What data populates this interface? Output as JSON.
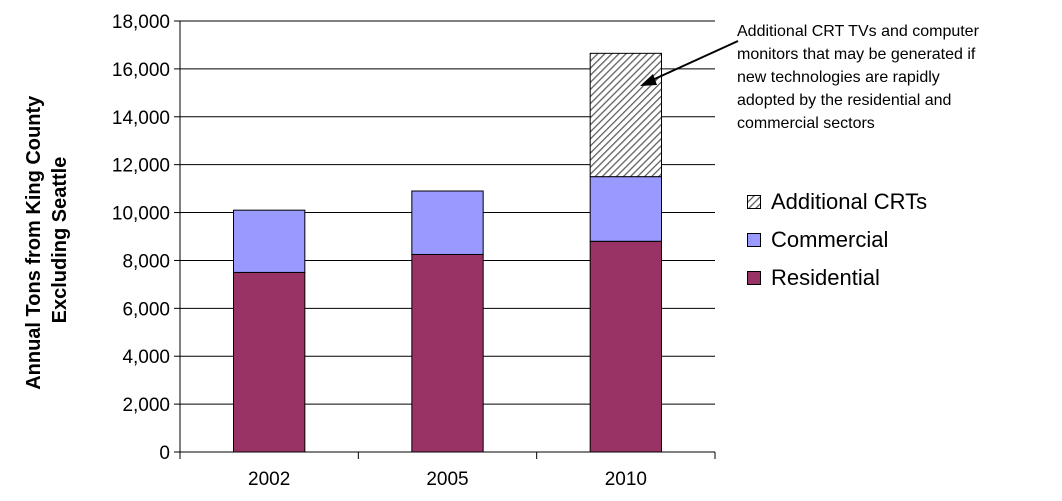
{
  "chart_data": {
    "type": "bar",
    "stacked": true,
    "categories": [
      "2002",
      "2005",
      "2010"
    ],
    "series": [
      {
        "name": "Residential",
        "values": [
          7500,
          8250,
          8800
        ],
        "color": "#993366"
      },
      {
        "name": "Commercial",
        "values": [
          2600,
          2650,
          2700
        ],
        "color": "#9999ff"
      },
      {
        "name": "Additional CRTs",
        "values": [
          0,
          0,
          5150
        ],
        "color": "#ffffff",
        "pattern": "diagonal-hatch"
      }
    ],
    "ylabel_lines": [
      "Annual Tons from King County",
      "Excluding Seattle"
    ],
    "ylim": [
      0,
      18000
    ],
    "yticks": [
      "0",
      "2,000",
      "4,000",
      "6,000",
      "8,000",
      "10,000",
      "12,000",
      "14,000",
      "16,000",
      "18,000"
    ],
    "grid": true,
    "legend_position": "right",
    "annotation_lines": [
      "Additional CRT TVs and computer",
      "monitors that may be generated if",
      "new  technologies are rapidly",
      "adopted by the residential and",
      "commercial sectors"
    ]
  }
}
